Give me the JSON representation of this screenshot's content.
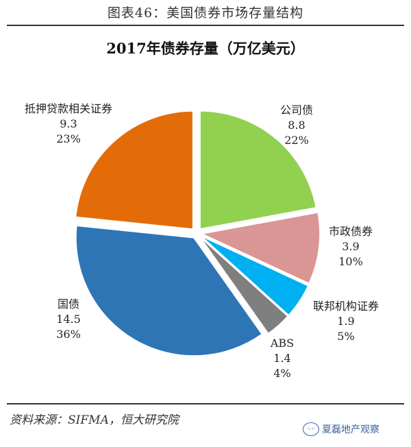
{
  "figure_title": "图表46：美国债券市场存量结构",
  "source": "资料来源：SIFMA，恒大研究院",
  "watermark": "夏磊地产观察",
  "watermark_icon": "wechat-icon",
  "chart_data": {
    "type": "pie",
    "title": "2017年债券存量（万亿美元）",
    "slices": [
      {
        "name": "公司债",
        "value": 8.8,
        "pct": "22%",
        "value_label": "8.8",
        "color": "#92d050"
      },
      {
        "name": "市政债券",
        "value": 3.9,
        "pct": "10%",
        "value_label": "3.9",
        "color": "#da9694"
      },
      {
        "name": "联邦机构证券",
        "value": 1.9,
        "pct": "5%",
        "value_label": "1.9",
        "color": "#00b0f0"
      },
      {
        "name": "ABS",
        "value": 1.4,
        "pct": "4%",
        "value_label": "1.4",
        "color": "#7f7f7f"
      },
      {
        "name": "国债",
        "value": 14.5,
        "pct": "36%",
        "value_label": "14.5",
        "color": "#2e75b6"
      },
      {
        "name": "抵押贷款相关证券",
        "value": 9.3,
        "pct": "23%",
        "value_label": "9.3",
        "color": "#e36c09"
      }
    ]
  }
}
